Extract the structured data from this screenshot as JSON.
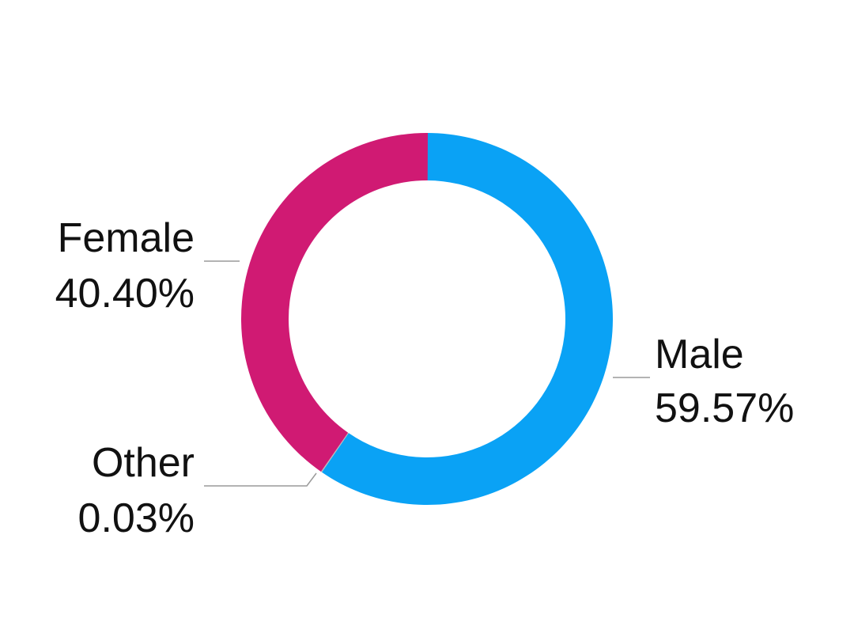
{
  "chart_data": {
    "type": "pie",
    "style": "donut",
    "slices": [
      {
        "name": "Male",
        "percent_label": "59.57%",
        "value": 59.57,
        "color": "#0aa2f5"
      },
      {
        "name": "Other",
        "percent_label": "0.03%",
        "value": 0.03,
        "color": "#b8b8b8"
      },
      {
        "name": "Female",
        "percent_label": "40.40%",
        "value": 40.4,
        "color": "#d01a73"
      }
    ]
  }
}
